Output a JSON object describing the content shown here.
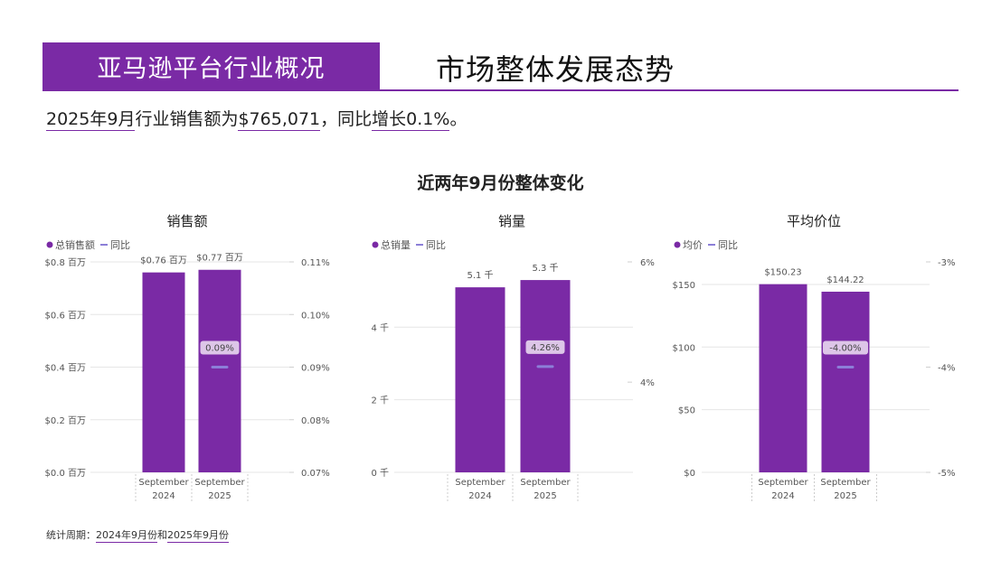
{
  "header": {
    "band_title": "亚马逊平台行业概况",
    "title": "市场整体发展态势"
  },
  "summary": {
    "part1": "2025年9月",
    "part2": "行业销售额为",
    "part3": "$765,071",
    "part4": "，同比",
    "part5": "增长0.1%",
    "part6": "。"
  },
  "section_title": "近两年9月份整体变化",
  "footnote": {
    "prefix": "统计周期：",
    "p1": "2024年9月份",
    "mid": "和",
    "p2": "2025年9月份"
  },
  "colors": {
    "bar": "#7a2aa5",
    "line": "#8c7fd8",
    "grid": "#e6e6e6",
    "text": "#555555",
    "label_bg": "#ddc6e8"
  },
  "chart_data": [
    {
      "type": "bar",
      "title": "销售额",
      "legend": [
        "总销售额",
        "同比"
      ],
      "categories": [
        "September 2024",
        "September 2025"
      ],
      "category_lines": [
        [
          "September",
          "2024"
        ],
        [
          "September",
          "2025"
        ]
      ],
      "series": [
        {
          "name": "总销售额",
          "values": [
            0.76,
            0.77
          ],
          "labels": [
            "$0.76 百万",
            "$0.77 百万"
          ]
        },
        {
          "name": "同比",
          "values": [
            null,
            0.09
          ],
          "labels": [
            "",
            "0.09%"
          ]
        }
      ],
      "ylim": [
        0,
        0.8
      ],
      "yticks": [
        0,
        0.2,
        0.4,
        0.6,
        0.8
      ],
      "ytick_labels": [
        "$0.0 百万",
        "$0.2 百万",
        "$0.4 百万",
        "$0.6 百万",
        "$0.8 百万"
      ],
      "y2lim": [
        0.07,
        0.11
      ],
      "y2ticks": [
        0.07,
        0.08,
        0.09,
        0.1,
        0.11
      ],
      "y2tick_labels": [
        "0.07%",
        "0.08%",
        "0.09%",
        "0.10%",
        "0.11%"
      ],
      "y2_grid_values": [
        0.07,
        0.08,
        0.09,
        0.1,
        0.11
      ]
    },
    {
      "type": "bar",
      "title": "销量",
      "legend": [
        "总销量",
        "同比"
      ],
      "categories": [
        "September 2024",
        "September 2025"
      ],
      "category_lines": [
        [
          "September",
          "2024"
        ],
        [
          "September",
          "2025"
        ]
      ],
      "series": [
        {
          "name": "总销量",
          "values": [
            5.1,
            5.3
          ],
          "labels": [
            "5.1 千",
            "5.3 千"
          ]
        },
        {
          "name": "同比",
          "values": [
            null,
            4.26
          ],
          "labels": [
            "",
            "4.26%"
          ]
        }
      ],
      "ylim": [
        0,
        5.8
      ],
      "yticks": [
        0,
        2,
        4
      ],
      "ytick_labels": [
        "0 千",
        "2 千",
        "4 千"
      ],
      "y2lim": [
        2.5,
        6
      ],
      "y2ticks": [
        4,
        6
      ],
      "y2tick_labels": [
        "4%",
        "6%"
      ],
      "y2_grid_values": [
        4,
        6
      ]
    },
    {
      "type": "bar",
      "title": "平均价位",
      "legend": [
        "均价",
        "同比"
      ],
      "categories": [
        "September 2024",
        "September 2025"
      ],
      "category_lines": [
        [
          "September",
          "2024"
        ],
        [
          "September",
          "2025"
        ]
      ],
      "series": [
        {
          "name": "均价",
          "values": [
            150.23,
            144.22
          ],
          "labels": [
            "$150.23",
            "$144.22"
          ]
        },
        {
          "name": "同比",
          "values": [
            null,
            -4.0
          ],
          "labels": [
            "",
            "-4.00%"
          ]
        }
      ],
      "ylim": [
        0,
        168
      ],
      "yticks": [
        0,
        50,
        100,
        150
      ],
      "ytick_labels": [
        "$0",
        "$50",
        "$100",
        "$150"
      ],
      "y2lim": [
        -5,
        -3
      ],
      "y2ticks": [
        -5,
        -4,
        -3
      ],
      "y2tick_labels": [
        "-5%",
        "-4%",
        "-3%"
      ],
      "y2_grid_values": [
        -5,
        -4,
        -3
      ]
    }
  ]
}
